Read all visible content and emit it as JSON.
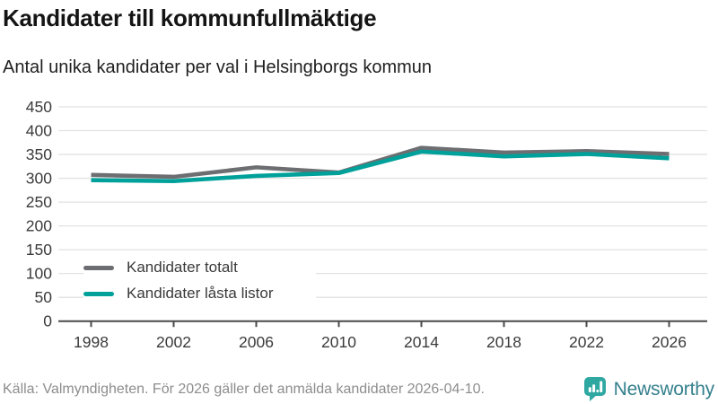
{
  "header": {
    "title": "Kandidater till kommunfullmäktige",
    "subtitle": "Antal unika kandidater per val i Helsingborgs kommun"
  },
  "chart_data": {
    "type": "line",
    "categories": [
      "1998",
      "2002",
      "2006",
      "2010",
      "2014",
      "2018",
      "2022",
      "2026"
    ],
    "series": [
      {
        "name": "Kandidater totalt",
        "color": "#6d6e71",
        "values": [
          307,
          303,
          323,
          312,
          364,
          354,
          357,
          351
        ]
      },
      {
        "name": "Kandidater låsta listor",
        "color": "#00a19a",
        "values": [
          296,
          294,
          305,
          311,
          356,
          346,
          351,
          342
        ]
      }
    ],
    "title": "Kandidater till kommunfullmäktige",
    "subtitle": "Antal unika kandidater per val i Helsingborgs kommun",
    "xlabel": "",
    "ylabel": "",
    "ylim": [
      0,
      450
    ],
    "yticks": [
      0,
      50,
      100,
      150,
      200,
      250,
      300,
      350,
      400,
      450
    ],
    "grid": true,
    "legend_position": "inside-bottom-left",
    "colors": {
      "gridline": "#e2e2e2",
      "axis_line": "#4a4a4a",
      "tick_label": "#3b3b3b"
    }
  },
  "footer": {
    "source": "Källa: Valmyndigheten. För 2026 gäller det anmälda kandidater 2026-04-10.",
    "brand": "Newsworthy",
    "brand_color": "#35808d",
    "icon_color": "#2fa8a2"
  }
}
